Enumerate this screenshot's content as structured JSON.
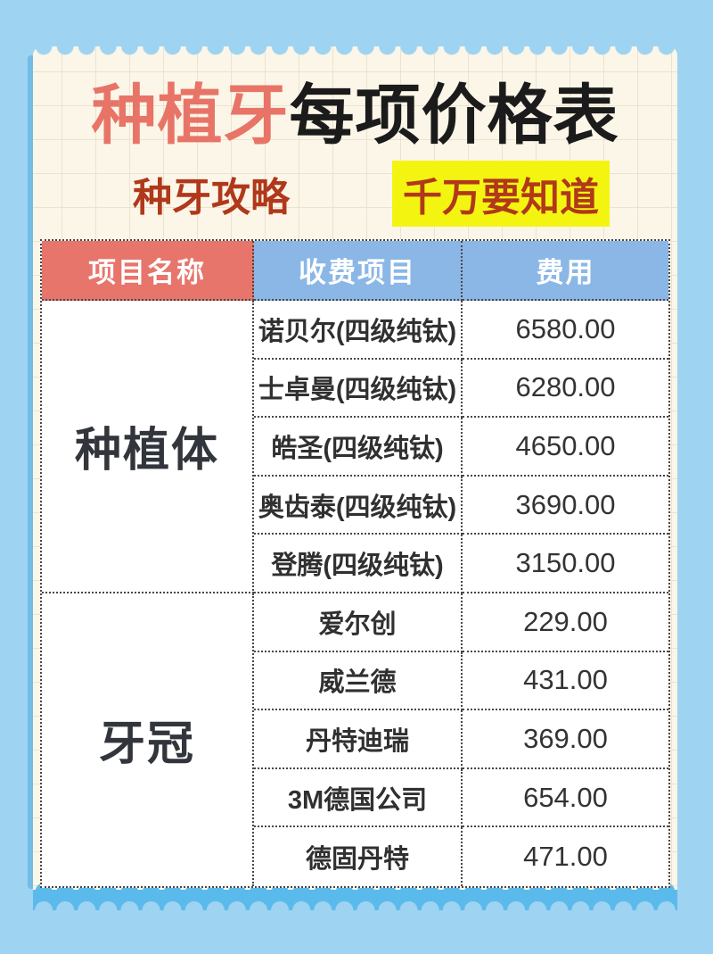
{
  "poster": {
    "title_accent": "种植牙",
    "title_rest": "每项价格表",
    "subtitle_left": "种牙攻略",
    "subtitle_right": "千万要知道"
  },
  "table": {
    "headers": [
      "项目名称",
      "收费项目",
      "费用"
    ],
    "sections": [
      {
        "category": "种植体",
        "rows": [
          {
            "item": "诺贝尔(四级纯钛)",
            "fee": "6580.00"
          },
          {
            "item": "士卓曼(四级纯钛)",
            "fee": "6280.00"
          },
          {
            "item": "皓圣(四级纯钛)",
            "fee": "4650.00"
          },
          {
            "item": "奥齿泰(四级纯钛)",
            "fee": "3690.00"
          },
          {
            "item": "登腾(四级纯钛)",
            "fee": "3150.00"
          }
        ]
      },
      {
        "category": "牙冠",
        "rows": [
          {
            "item": "爱尔创",
            "fee": "229.00"
          },
          {
            "item": "威兰德",
            "fee": "431.00"
          },
          {
            "item": "丹特迪瑞",
            "fee": "369.00"
          },
          {
            "item": "3M德国公司",
            "fee": "654.00"
          },
          {
            "item": "德固丹特",
            "fee": "471.00"
          }
        ]
      }
    ]
  },
  "colors": {
    "page_background": "#9ed3f2",
    "bottom_band_blue": "#5bbaec",
    "paper_cream": "#fbf6e8",
    "title_accent_red": "#e87468",
    "title_black": "#1b1b1b",
    "subtitle_brick_red": "#b0381b",
    "highlight_yellow": "#f4f411",
    "header_red": "#e7756b",
    "header_blue": "#8ab7e6",
    "cell_text": "#303030",
    "border_dotted": "#474747"
  }
}
